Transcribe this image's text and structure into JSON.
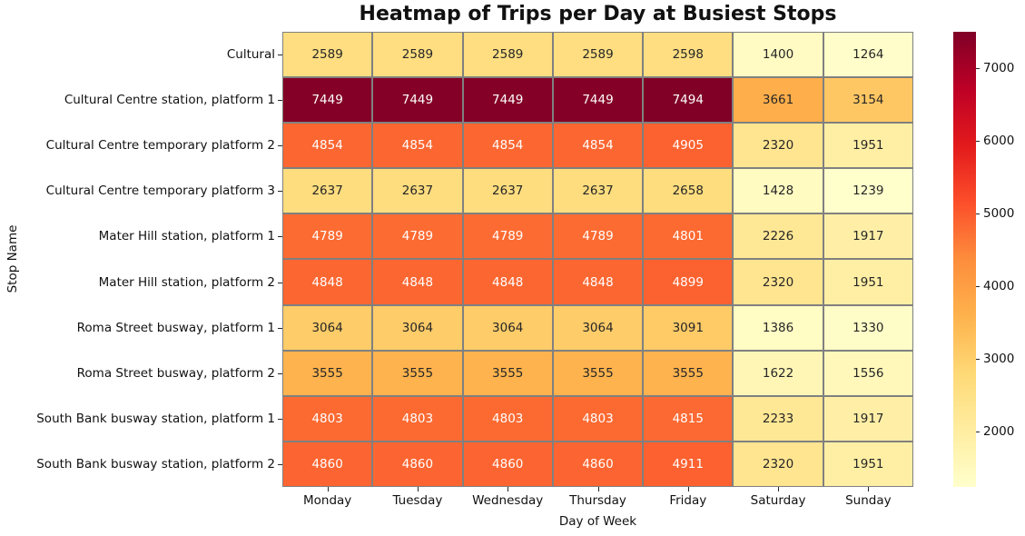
{
  "chart_data": {
    "type": "heatmap",
    "title": "Heatmap of Trips per Day at Busiest Stops",
    "xlabel": "Day of Week",
    "ylabel": "Stop Name",
    "columns": [
      "Monday",
      "Tuesday",
      "Wednesday",
      "Thursday",
      "Friday",
      "Saturday",
      "Sunday"
    ],
    "rows": [
      "Cultural",
      "Cultural Centre station, platform 1",
      "Cultural Centre temporary platform 2",
      "Cultural Centre temporary platform 3",
      "Mater Hill station, platform 1",
      "Mater Hill station, platform 2",
      "Roma Street busway, platform 1",
      "Roma Street busway, platform 2",
      "South Bank busway station, platform 1",
      "South Bank busway station, platform 2"
    ],
    "values": [
      [
        2589,
        2589,
        2589,
        2589,
        2598,
        1400,
        1264
      ],
      [
        7449,
        7449,
        7449,
        7449,
        7494,
        3661,
        3154
      ],
      [
        4854,
        4854,
        4854,
        4854,
        4905,
        2320,
        1951
      ],
      [
        2637,
        2637,
        2637,
        2637,
        2658,
        1428,
        1239
      ],
      [
        4789,
        4789,
        4789,
        4789,
        4801,
        2226,
        1917
      ],
      [
        4848,
        4848,
        4848,
        4848,
        4899,
        2320,
        1951
      ],
      [
        3064,
        3064,
        3064,
        3064,
        3091,
        1386,
        1330
      ],
      [
        3555,
        3555,
        3555,
        3555,
        3555,
        1622,
        1556
      ],
      [
        4803,
        4803,
        4803,
        4803,
        4815,
        2233,
        1917
      ],
      [
        4860,
        4860,
        4860,
        4860,
        4911,
        2320,
        1951
      ]
    ],
    "vmin": 1239,
    "vmax": 7494,
    "colorbar_ticks": [
      2000,
      3000,
      4000,
      5000,
      6000,
      7000
    ],
    "legend_position": "right",
    "grid": "on",
    "colormap": {
      "name": "YlOrRd",
      "stops": [
        "#ffffcc",
        "#ffeda0",
        "#fed976",
        "#feb24c",
        "#fd8d3c",
        "#fc4e2a",
        "#e31a1c",
        "#bd0026",
        "#800026"
      ]
    },
    "grid_line_color": "#808080",
    "annot_color_dark": "#262626",
    "annot_color_light": "#ffffff"
  }
}
